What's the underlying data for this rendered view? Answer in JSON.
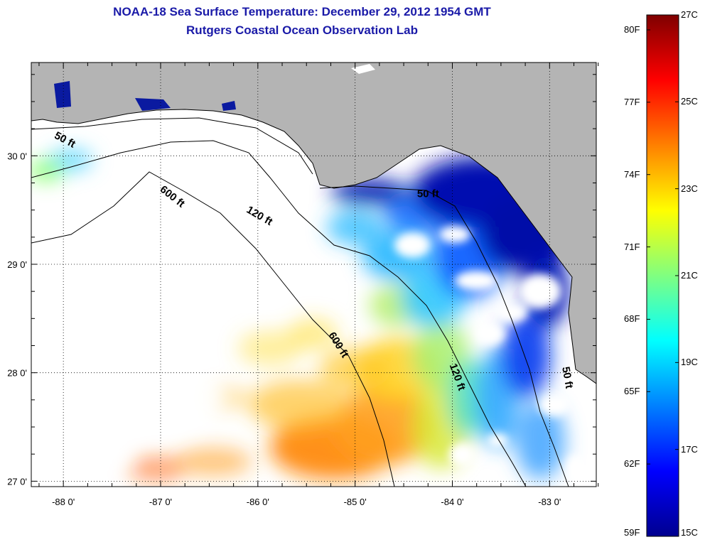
{
  "title": {
    "line1": "NOAA-18 Sea Surface Temperature:  December 29, 2012 1954 GMT",
    "line2": "Rutgers Coastal Ocean Observation Lab"
  },
  "map": {
    "lon_range": [
      -88.33,
      -82.52
    ],
    "lat_range": [
      26.95,
      30.86
    ],
    "x_ticks": [
      {
        "value": -88,
        "label": "-88 0'"
      },
      {
        "value": -87,
        "label": "-87 0'"
      },
      {
        "value": -86,
        "label": "-86 0'"
      },
      {
        "value": -85,
        "label": "-85 0'"
      },
      {
        "value": -84,
        "label": "-84 0'"
      },
      {
        "value": -83,
        "label": "-83 0'"
      }
    ],
    "y_ticks": [
      {
        "value": 30,
        "label": "30 0'"
      },
      {
        "value": 29,
        "label": "29 0'"
      },
      {
        "value": 28,
        "label": "28 0'"
      },
      {
        "value": 27,
        "label": "27 0'"
      }
    ],
    "contour_labels": [
      {
        "text": "50 ft",
        "lon": -88.0,
        "lat": 30.12,
        "angle": 28
      },
      {
        "text": "600 ft",
        "lon": -86.9,
        "lat": 29.6,
        "angle": 38
      },
      {
        "text": "120 ft",
        "lon": -86.0,
        "lat": 29.42,
        "angle": 30
      },
      {
        "text": "50 ft",
        "lon": -84.25,
        "lat": 29.62,
        "angle": 0
      },
      {
        "text": "600 ft",
        "lon": -85.2,
        "lat": 28.24,
        "angle": 58
      },
      {
        "text": "120 ft",
        "lon": -83.98,
        "lat": 27.95,
        "angle": 70
      },
      {
        "text": "50 ft",
        "lon": -82.85,
        "lat": 27.95,
        "angle": 80
      }
    ],
    "colors": {
      "land": "#b4b4b4",
      "no_data": "#ffffff",
      "contour": "#000000",
      "grid": "#000000"
    }
  },
  "colorbar": {
    "celsius": [
      "27C",
      "25C",
      "23C",
      "21C",
      "19C",
      "17C",
      "15C"
    ],
    "fahrenheit": [
      "80F",
      "77F",
      "74F",
      "71F",
      "68F",
      "65F",
      "62F",
      "59F"
    ],
    "gradient": [
      "#7f0000",
      "#ff0000",
      "#ff8000",
      "#ffff00",
      "#80ff80",
      "#00ffff",
      "#0080ff",
      "#0000ff",
      "#00008f"
    ]
  }
}
